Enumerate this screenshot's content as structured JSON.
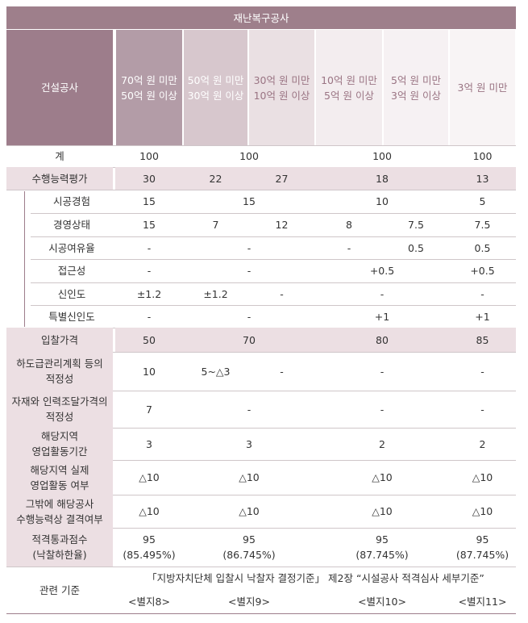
{
  "title": "재난복구공사",
  "header": {
    "corner": "건설공사",
    "columns": [
      [
        "70억 원 미만",
        "50억 원 이상"
      ],
      [
        "50억 원 미만",
        "30억 원 이상"
      ],
      [
        "30억 원 미만",
        "10억 원 이상"
      ],
      [
        "10억 원 미만",
        "5억 원 이상"
      ],
      [
        "5억 원 미만",
        "3억 원 이상"
      ],
      [
        "3억 원 미만"
      ]
    ]
  },
  "rows": [
    {
      "label": [
        "계"
      ],
      "cells": [
        [
          "100"
        ],
        [
          "100"
        ],
        [
          "100"
        ],
        [
          "100"
        ]
      ]
    },
    {
      "label": [
        "수행능력평가"
      ],
      "cells": [
        [
          "30"
        ],
        [
          "22"
        ],
        [
          "27"
        ],
        [
          "18"
        ],
        [
          "13"
        ]
      ]
    },
    {
      "label": [
        "시공경험"
      ],
      "cells": [
        [
          "15"
        ],
        [
          "15"
        ],
        [
          "10"
        ],
        [
          "5"
        ]
      ]
    },
    {
      "label": [
        "경영상태"
      ],
      "cells": [
        [
          "15"
        ],
        [
          "7"
        ],
        [
          "12"
        ],
        [
          "8"
        ],
        [
          "7.5"
        ],
        [
          "7.5"
        ]
      ]
    },
    {
      "label": [
        "시공여유율"
      ],
      "cells": [
        [
          "-"
        ],
        [
          "-"
        ],
        [
          "-"
        ],
        [
          "0.5"
        ],
        [
          "0.5"
        ]
      ]
    },
    {
      "label": [
        "접근성"
      ],
      "cells": [
        [
          "-"
        ],
        [
          "-"
        ],
        [
          "+0.5"
        ],
        [
          "+0.5"
        ]
      ]
    },
    {
      "label": [
        "신인도"
      ],
      "cells": [
        [
          "±1.2"
        ],
        [
          "±1.2"
        ],
        [
          "-"
        ],
        [
          "-"
        ],
        [
          "-"
        ]
      ]
    },
    {
      "label": [
        "특별신인도"
      ],
      "cells": [
        [
          "-"
        ],
        [
          "-"
        ],
        [
          "+1"
        ],
        [
          "+1"
        ]
      ]
    },
    {
      "label": [
        "입찰가격"
      ],
      "cells": [
        [
          "50"
        ],
        [
          "70"
        ],
        [
          "80"
        ],
        [
          "85"
        ]
      ]
    },
    {
      "label": [
        "하도급관리계획 등의",
        "적정성"
      ],
      "cells": [
        [
          "10"
        ],
        [
          "5~△3"
        ],
        [
          "-"
        ],
        [
          "-"
        ],
        [
          "-"
        ]
      ]
    },
    {
      "label": [
        "자재와 인력조달가격의",
        "적정성"
      ],
      "cells": [
        [
          "7"
        ],
        [
          "-"
        ],
        [
          "-"
        ],
        [
          "-"
        ]
      ]
    },
    {
      "label": [
        "해당지역",
        "영업활동기간"
      ],
      "cells": [
        [
          "3"
        ],
        [
          "3"
        ],
        [
          "2"
        ],
        [
          "2"
        ]
      ]
    },
    {
      "label": [
        "해당지역 실제",
        "영업활동 여부"
      ],
      "cells": [
        [
          "△10"
        ],
        [
          "△10"
        ],
        [
          "△10"
        ],
        [
          "△10"
        ]
      ]
    },
    {
      "label": [
        "그밖에 해당공사",
        "수행능력상 결격여부"
      ],
      "cells": [
        [
          "△10"
        ],
        [
          "△10"
        ],
        [
          "△10"
        ],
        [
          "△10"
        ]
      ]
    },
    {
      "label": [
        "적격통과점수",
        "(낙찰하한율)"
      ],
      "cells": [
        [
          "95",
          "(85.495%)"
        ],
        [
          "95",
          "(86.745%)"
        ],
        [
          "95",
          "(87.745%)"
        ],
        [
          "95",
          "(87.745%)"
        ]
      ]
    }
  ],
  "reference": {
    "label": "관련 기준",
    "text": "「지방자치단체 입찰시 낙찰자 결정기준」 제2장 “시설공사 적격심사 세부기준”",
    "cells": [
      "<별지8>",
      "<별지9>",
      "<별지10>",
      "<별지11>"
    ]
  }
}
